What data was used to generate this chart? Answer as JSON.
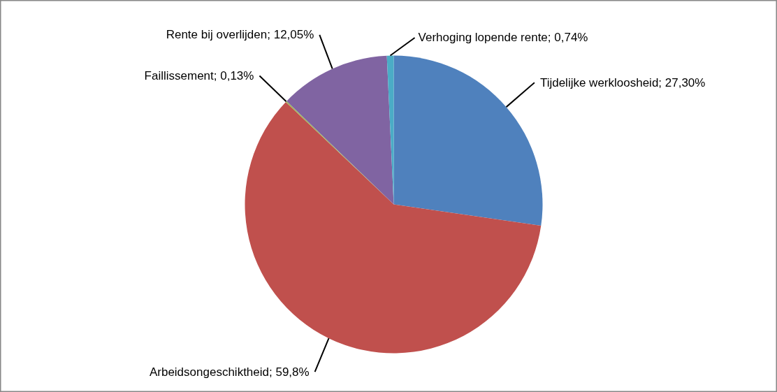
{
  "chart_data": {
    "type": "pie",
    "categories": [
      "Tijdelijke werkloosheid",
      "Arbeidsongeschiktheid",
      "Faillissement",
      "Rente bij overlijden",
      "Verhoging lopende rente"
    ],
    "values": [
      27.3,
      59.8,
      0.13,
      12.05,
      0.74
    ],
    "value_labels": [
      "27,30%",
      "59,8%",
      "0,13%",
      "12,05%",
      "0,74%"
    ],
    "colors": [
      "#4f81bd",
      "#c0504d",
      "#9bbb59",
      "#8064a2",
      "#4bacc6"
    ],
    "legend": false
  }
}
